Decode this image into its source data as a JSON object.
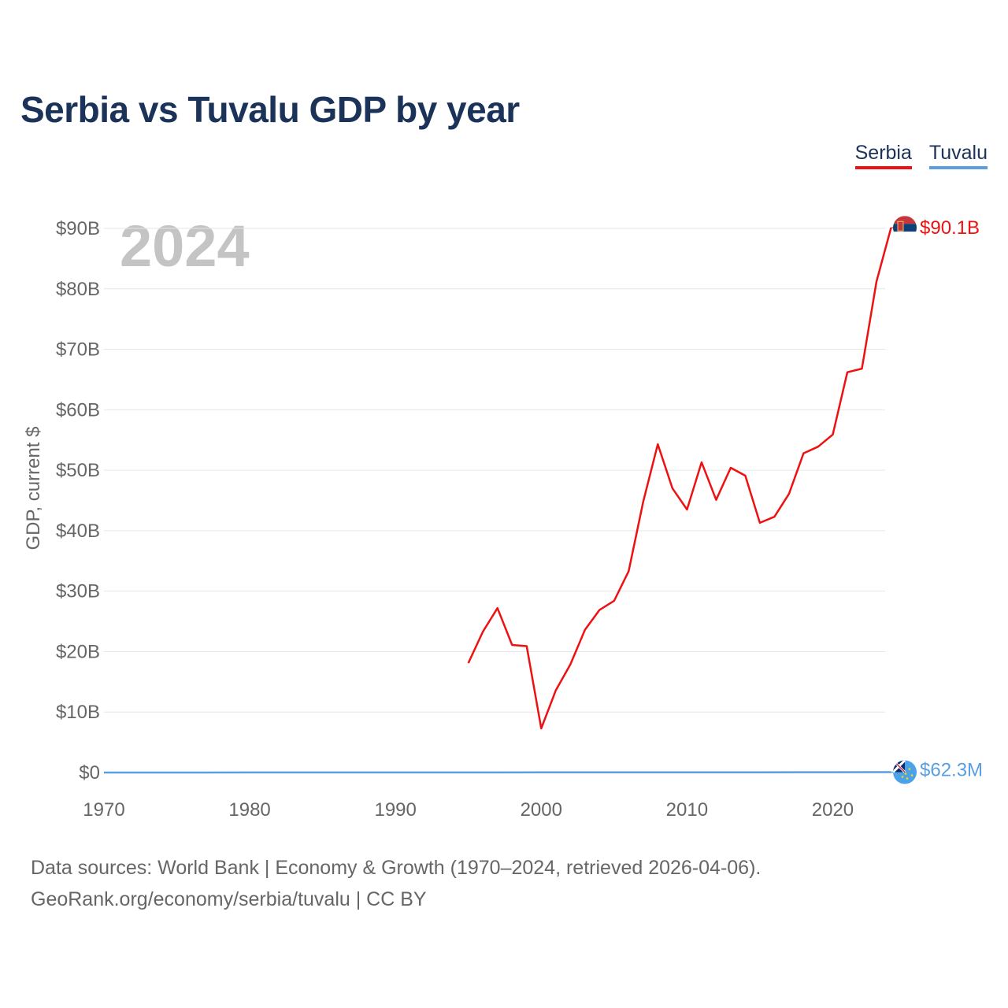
{
  "title": "Serbia vs Tuvalu GDP by year",
  "legend": [
    {
      "label": "Serbia",
      "color": "#ee1111"
    },
    {
      "label": "Tuvalu",
      "color": "#5b9fe0"
    }
  ],
  "year_watermark": "2024",
  "sources": {
    "line1": "Data sources: World Bank | Economy & Growth (1970–2024, retrieved 2026-04-06).",
    "line2": "GeoRank.org/economy/serbia/tuvalu | CC BY"
  },
  "chart_data": {
    "type": "line",
    "title": "Serbia vs Tuvalu GDP by year",
    "xlabel": "",
    "ylabel": "GDP, current $",
    "xlim": [
      1970,
      2025
    ],
    "ylim": [
      0,
      90000000000
    ],
    "x_ticks": [
      1970,
      1980,
      1990,
      2000,
      2010,
      2020
    ],
    "x_tick_labels": [
      "1970",
      "1980",
      "1990",
      "2000",
      "2010",
      "2020"
    ],
    "y_ticks": [
      0,
      10000000000,
      20000000000,
      30000000000,
      40000000000,
      50000000000,
      60000000000,
      70000000000,
      80000000000,
      90000000000
    ],
    "y_tick_labels": [
      "$0",
      "$10B",
      "$20B",
      "$30B",
      "$40B",
      "$50B",
      "$60B",
      "$70B",
      "$80B",
      "$90B"
    ],
    "grid": true,
    "series": [
      {
        "name": "Serbia",
        "color": "#ee1111",
        "end_label": "$90.1B",
        "points": [
          [
            1995,
            18.1
          ],
          [
            1996,
            23.3
          ],
          [
            1997,
            27.2
          ],
          [
            1998,
            21.1
          ],
          [
            1999,
            20.9
          ],
          [
            2000,
            7.3
          ],
          [
            2001,
            13.6
          ],
          [
            2002,
            17.9
          ],
          [
            2003,
            23.6
          ],
          [
            2004,
            26.9
          ],
          [
            2005,
            28.4
          ],
          [
            2006,
            33.3
          ],
          [
            2007,
            44.8
          ],
          [
            2008,
            54.3
          ],
          [
            2009,
            47.0
          ],
          [
            2010,
            43.5
          ],
          [
            2011,
            51.3
          ],
          [
            2012,
            45.1
          ],
          [
            2013,
            50.4
          ],
          [
            2014,
            49.1
          ],
          [
            2015,
            41.3
          ],
          [
            2016,
            42.3
          ],
          [
            2017,
            46.1
          ],
          [
            2018,
            52.8
          ],
          [
            2019,
            53.9
          ],
          [
            2020,
            55.9
          ],
          [
            2021,
            66.2
          ],
          [
            2022,
            66.8
          ],
          [
            2023,
            81.2
          ],
          [
            2024,
            90.1
          ]
        ],
        "unit": "billion USD"
      },
      {
        "name": "Tuvalu",
        "color": "#5b9fe0",
        "end_label": "$62.3M",
        "points": [
          [
            1970,
            0.0
          ],
          [
            1975,
            0.0
          ],
          [
            1980,
            0.01
          ],
          [
            1985,
            0.01
          ],
          [
            1990,
            0.01
          ],
          [
            1995,
            0.01
          ],
          [
            2000,
            0.02
          ],
          [
            2005,
            0.03
          ],
          [
            2010,
            0.03
          ],
          [
            2015,
            0.035
          ],
          [
            2020,
            0.055
          ],
          [
            2023,
            0.062
          ],
          [
            2024,
            0.0623
          ]
        ],
        "unit": "billion USD"
      }
    ]
  }
}
